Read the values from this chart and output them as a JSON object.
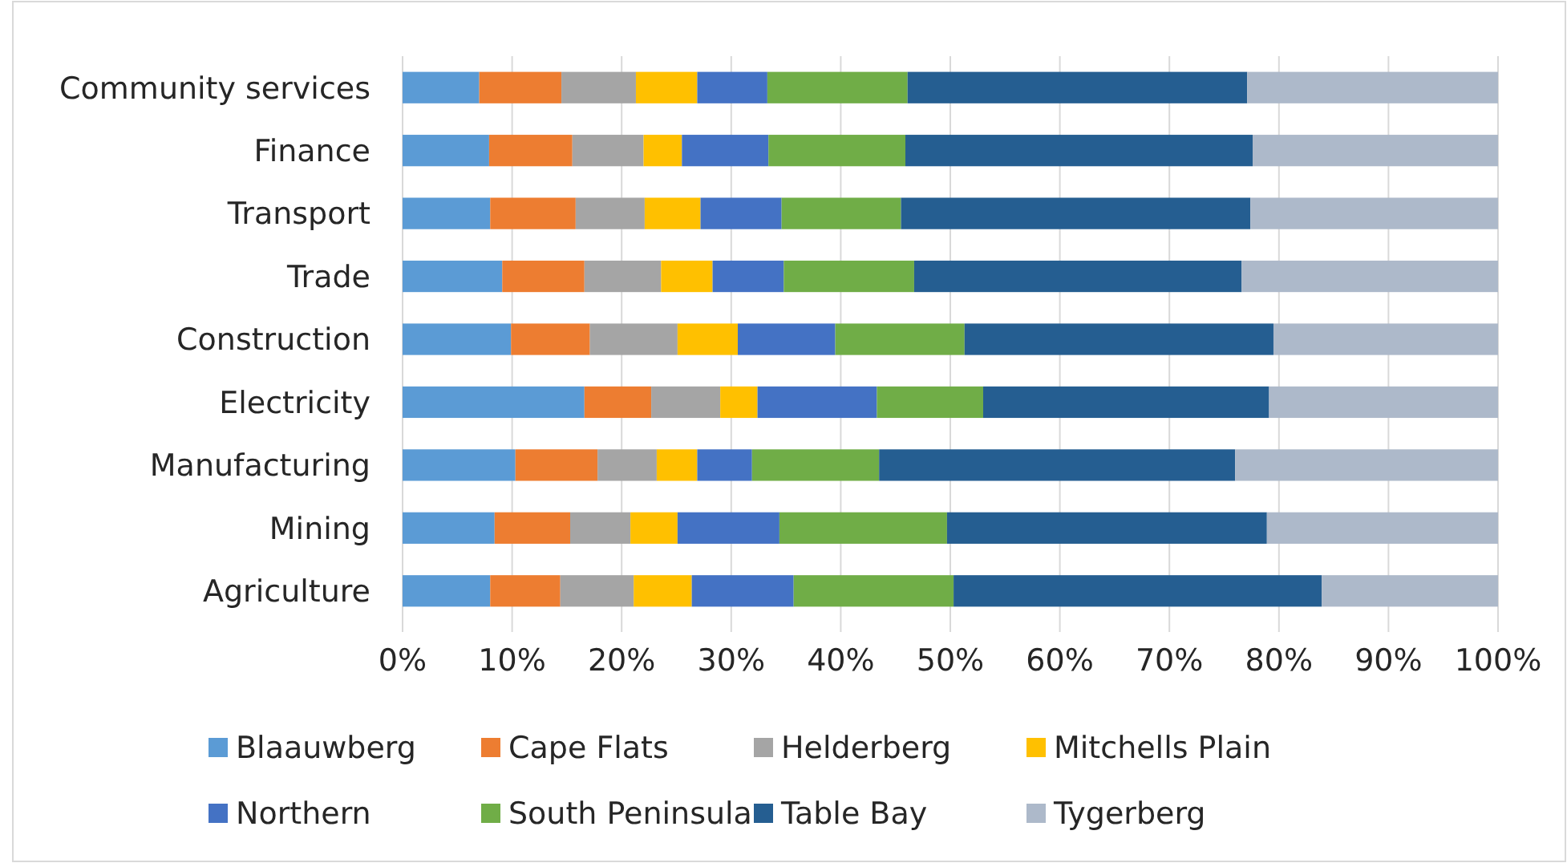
{
  "chart_data": {
    "type": "bar",
    "orientation": "horizontal",
    "stacked": true,
    "categories": [
      "Community services",
      "Finance",
      "Transport",
      "Trade",
      "Construction",
      "Electricity",
      "Manufacturing",
      "Mining",
      "Agriculture"
    ],
    "series": [
      {
        "name": "Blaauwberg",
        "color": "#5b9bd5",
        "values": [
          7.0,
          7.9,
          8.0,
          9.1,
          9.9,
          16.6,
          10.3,
          8.4,
          8.0
        ]
      },
      {
        "name": "Cape Flats",
        "color": "#ed7d31",
        "values": [
          7.5,
          7.6,
          7.8,
          7.5,
          7.2,
          6.1,
          7.5,
          6.9,
          6.4
        ]
      },
      {
        "name": "Helderberg",
        "color": "#a5a5a5",
        "values": [
          6.8,
          6.5,
          6.3,
          7.0,
          8.0,
          6.3,
          5.4,
          5.5,
          6.7
        ]
      },
      {
        "name": "Mitchells Plain",
        "color": "#ffc000",
        "values": [
          5.6,
          3.5,
          5.1,
          4.7,
          5.5,
          3.4,
          3.7,
          4.3,
          5.3
        ]
      },
      {
        "name": "Northern",
        "color": "#4472c4",
        "values": [
          6.4,
          7.9,
          7.4,
          6.5,
          8.9,
          10.9,
          5.0,
          9.3,
          9.3
        ]
      },
      {
        "name": "South Peninsula",
        "color": "#70ad47",
        "values": [
          12.8,
          12.5,
          10.9,
          11.9,
          11.8,
          9.7,
          11.6,
          15.3,
          14.6
        ]
      },
      {
        "name": "Table Bay",
        "color": "#255e91",
        "values": [
          31.0,
          31.7,
          31.9,
          29.9,
          28.2,
          26.1,
          32.5,
          29.2,
          33.6
        ]
      },
      {
        "name": "Tygerberg",
        "color": "#adb9ca",
        "values": [
          22.9,
          22.4,
          22.6,
          23.4,
          20.5,
          20.9,
          24.0,
          21.1,
          16.1
        ]
      }
    ],
    "xlim": [
      0,
      100
    ],
    "xticks": [
      {
        "value": 0,
        "label": "0%"
      },
      {
        "value": 10,
        "label": "10%"
      },
      {
        "value": 20,
        "label": "20%"
      },
      {
        "value": 30,
        "label": "30%"
      },
      {
        "value": 40,
        "label": "40%"
      },
      {
        "value": 50,
        "label": "50%"
      },
      {
        "value": 60,
        "label": "60%"
      },
      {
        "value": 70,
        "label": "70%"
      },
      {
        "value": 80,
        "label": "80%"
      },
      {
        "value": 90,
        "label": "90%"
      },
      {
        "value": 100,
        "label": "100%"
      }
    ],
    "grid": "x",
    "legend": "bottom"
  }
}
